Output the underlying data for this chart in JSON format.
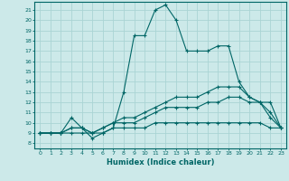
{
  "xlabel": "Humidex (Indice chaleur)",
  "xlim": [
    -0.5,
    23.5
  ],
  "ylim": [
    7.5,
    21.8
  ],
  "background_color": "#cce9e9",
  "grid_color": "#aad4d4",
  "line_color": "#006666",
  "xticks": [
    0,
    1,
    2,
    3,
    4,
    5,
    6,
    7,
    8,
    9,
    10,
    11,
    12,
    13,
    14,
    15,
    16,
    17,
    18,
    19,
    20,
    21,
    22,
    23
  ],
  "yticks": [
    8,
    9,
    10,
    11,
    12,
    13,
    14,
    15,
    16,
    17,
    18,
    19,
    20,
    21
  ],
  "series": [
    {
      "x": [
        0,
        1,
        2,
        3,
        4,
        5,
        6,
        7,
        8,
        9,
        10,
        11,
        12,
        13,
        14,
        15,
        16,
        17,
        18,
        19,
        20,
        21,
        22,
        23
      ],
      "y": [
        9,
        9,
        9,
        9.5,
        9.5,
        8.5,
        9,
        9.5,
        13,
        18.5,
        18.5,
        21,
        21.5,
        20,
        17,
        17,
        17,
        17.5,
        17.5,
        14,
        12.5,
        12,
        10.5,
        9.5
      ]
    },
    {
      "x": [
        0,
        1,
        2,
        3,
        4,
        5,
        6,
        7,
        8,
        9,
        10,
        11,
        12,
        13,
        14,
        15,
        16,
        17,
        18,
        19,
        20,
        21,
        22,
        23
      ],
      "y": [
        9,
        9,
        9,
        10.5,
        9.5,
        9,
        9.5,
        10,
        10.5,
        10.5,
        11,
        11.5,
        12,
        12.5,
        12.5,
        12.5,
        13,
        13.5,
        13.5,
        13.5,
        12.5,
        12,
        12,
        9.5
      ]
    },
    {
      "x": [
        0,
        1,
        2,
        3,
        4,
        5,
        6,
        7,
        8,
        9,
        10,
        11,
        12,
        13,
        14,
        15,
        16,
        17,
        18,
        19,
        20,
        21,
        22,
        23
      ],
      "y": [
        9,
        9,
        9,
        9,
        9,
        9,
        9,
        9.5,
        9.5,
        9.5,
        9.5,
        10,
        10,
        10,
        10,
        10,
        10,
        10,
        10,
        10,
        10,
        10,
        9.5,
        9.5
      ]
    },
    {
      "x": [
        0,
        1,
        2,
        3,
        4,
        5,
        6,
        7,
        8,
        9,
        10,
        11,
        12,
        13,
        14,
        15,
        16,
        17,
        18,
        19,
        20,
        21,
        22,
        23
      ],
      "y": [
        9,
        9,
        9,
        9.5,
        9.5,
        9,
        9.5,
        10,
        10,
        10,
        10.5,
        11,
        11.5,
        11.5,
        11.5,
        11.5,
        12,
        12,
        12.5,
        12.5,
        12,
        12,
        11,
        9.5
      ]
    }
  ]
}
